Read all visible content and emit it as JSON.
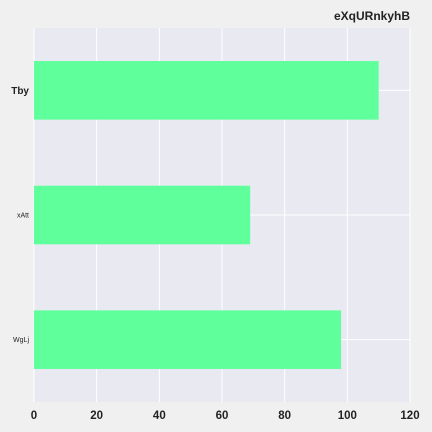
{
  "chart_data": {
    "type": "bar",
    "orientation": "horizontal",
    "title": "eXqURnkyhB",
    "xlabel": "",
    "ylabel": "",
    "categories": [
      "Tby",
      "xAtt",
      "WgLj"
    ],
    "values": [
      110,
      69,
      98
    ],
    "xlim": [
      0,
      120
    ],
    "xticks": [
      "0",
      "20",
      "40",
      "60",
      "80",
      "100",
      "120"
    ],
    "grid": true,
    "legend": "none",
    "colors": {
      "bar": "#5fff9b",
      "plot_background": "#e9e9f2",
      "grid": "#ffffff",
      "page_background": "#f0f0f0"
    }
  }
}
